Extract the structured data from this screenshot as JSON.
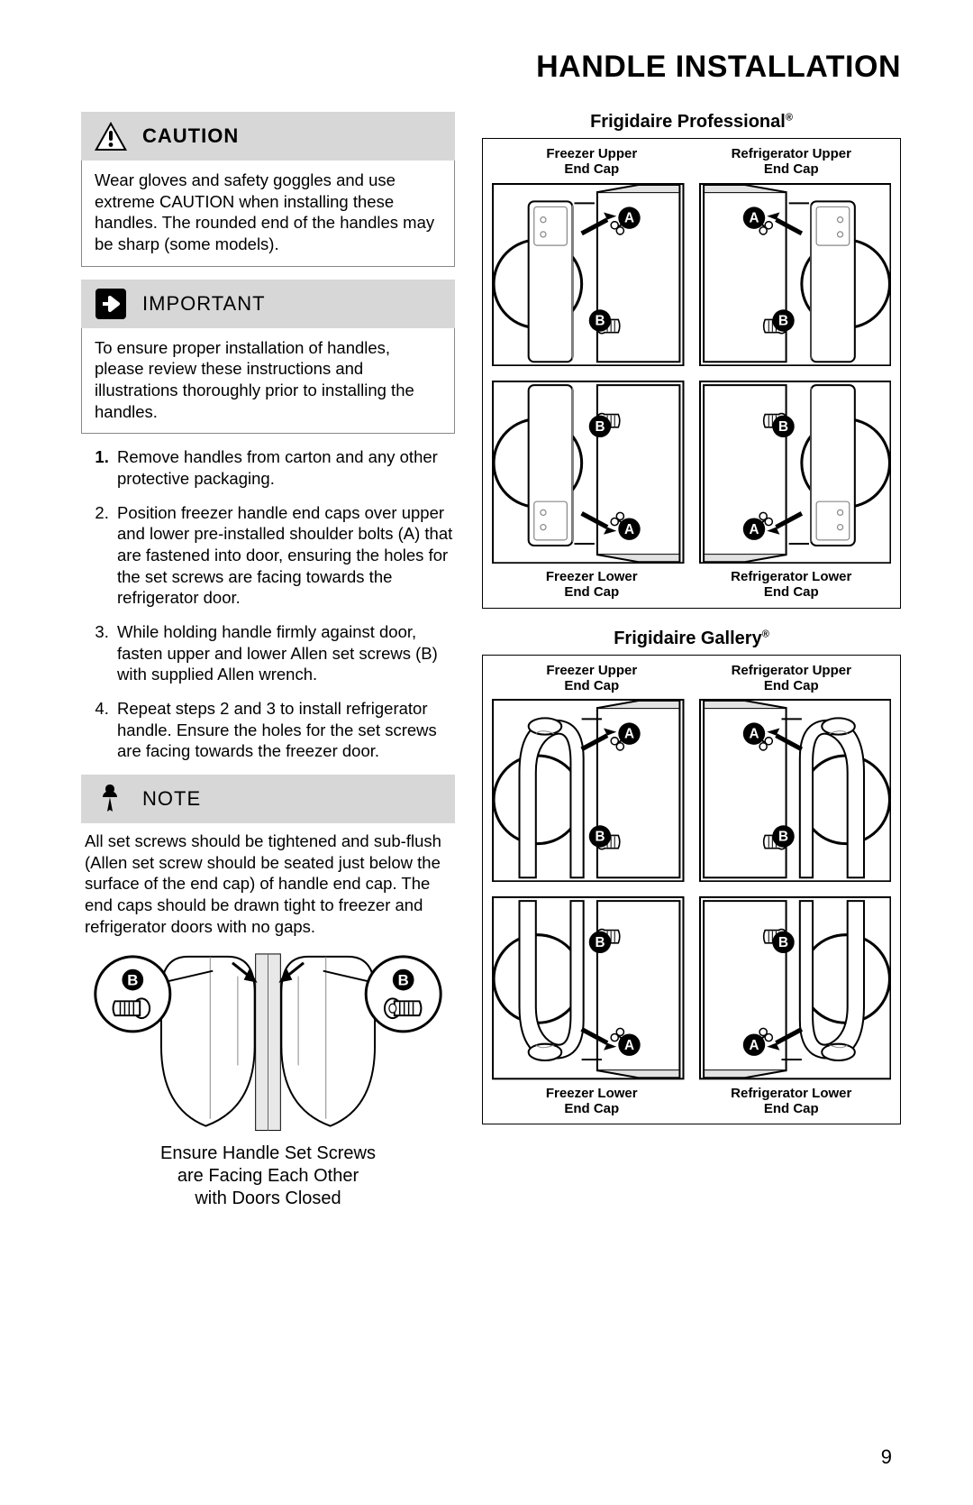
{
  "page_title": "Handle Installation",
  "page_number": "9",
  "caution": {
    "label": "CAUTION",
    "body": "Wear gloves and safety goggles and use extreme CAUTION when installing these handles. The rounded end of the handles may be sharp (some models)."
  },
  "important": {
    "label": "IMPORTANT",
    "body": "To ensure proper installation of handles, please review these instructions and illustrations thoroughly prior to installing the handles."
  },
  "steps": [
    "Remove handles from carton and any other protective packaging.",
    "Position freezer handle end caps over upper and lower pre-installed shoulder bolts (A) that are fastened into door, ensuring the holes for the set screws are facing towards the refrigerator door.",
    "While holding handle firmly against door, fasten upper and lower Allen set screws (B) with supplied Allen wrench.",
    "Repeat steps 2 and 3 to install refrigerator handle. Ensure the holes for the set screws are facing towards the freezer door."
  ],
  "note": {
    "label": "NOTE",
    "body": "All set screws should be tightened and sub-flush (Allen set screw should be seated just below the surface of the end cap) of handle end cap. The end caps should be drawn tight to freezer and refrigerator doors with no gaps."
  },
  "bottom_figure": {
    "caption_l1": "Ensure Handle Set Screws",
    "caption_l2": "are Facing Each Other",
    "caption_l3": "with Doors Closed",
    "label_b": "B"
  },
  "diagram_groups": [
    {
      "title": "Frigidaire Professional",
      "reg": "®",
      "labels": {
        "ul": "Freezer Upper End Cap",
        "ur": "Refrigerator Upper End Cap",
        "ll": "Freezer Lower End Cap",
        "lr": "Refrigerator Lower End Cap"
      },
      "cell_labels": {
        "a": "A",
        "b": "B"
      }
    },
    {
      "title": "Frigidaire Gallery",
      "reg": "®",
      "labels": {
        "ul": "Freezer Upper End Cap",
        "ur": "Refrigerator Upper End Cap",
        "ll": "Freezer Lower End Cap",
        "lr": "Refrigerator Lower End Cap"
      },
      "cell_labels": {
        "a": "A",
        "b": "B"
      }
    }
  ],
  "colors": {
    "header_bg": "#d7d7d7",
    "border": "#888888",
    "text": "#000000"
  }
}
